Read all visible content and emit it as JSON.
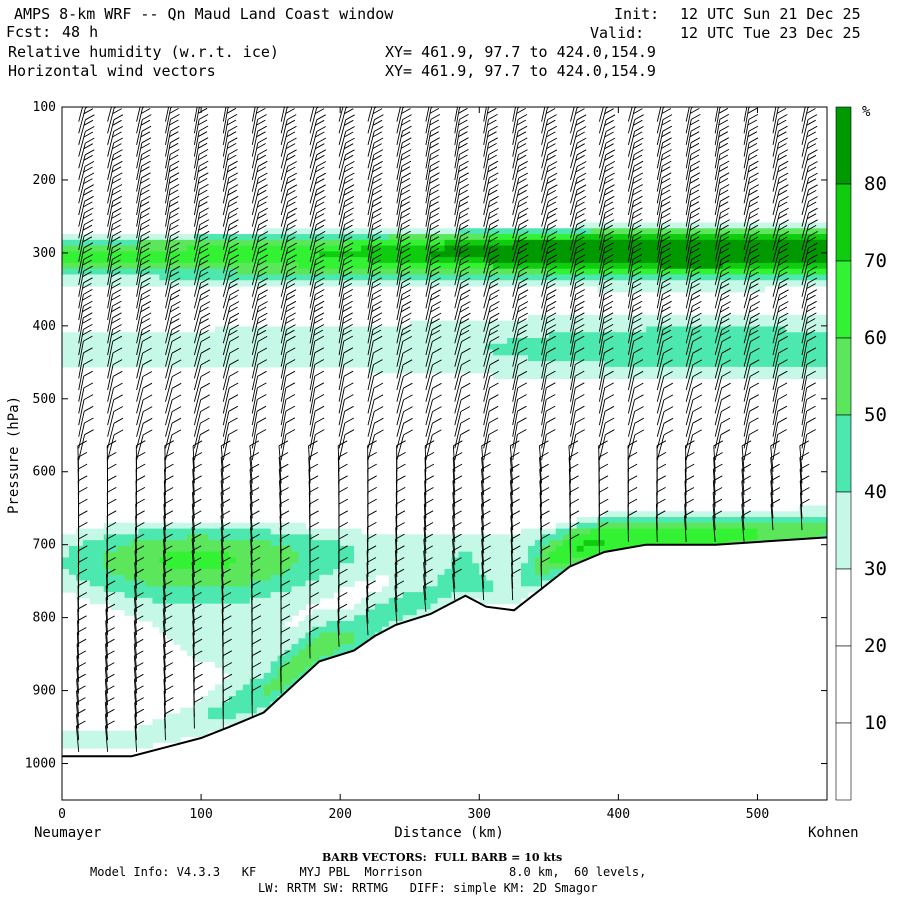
{
  "header": {
    "title": "AMPS 8-km WRF -- Qn Maud Land Coast window",
    "fcst_label": "Fcst:",
    "fcst_value": "48 h",
    "field1": "Relative humidity (w.r.t. ice)",
    "field2": "Horizontal wind vectors",
    "xy1": "XY= 461.9, 97.7 to 424.0,154.9",
    "xy2": "XY= 461.9, 97.7 to 424.0,154.9",
    "init_label": "Init:",
    "init_value": "12 UTC Sun 21 Dec 25",
    "valid_label": "Valid:",
    "valid_value": "12 UTC Tue 23 Dec 25"
  },
  "chart_data": {
    "type": "heatmap",
    "title": "Relative humidity (w.r.t. ice) and horizontal wind vectors cross-section",
    "xlabel": "Distance (km)",
    "ylabel": "Pressure (hPa)",
    "xlim": [
      0,
      550
    ],
    "ylim": [
      1050,
      100
    ],
    "x_ticks": [
      "0",
      "100",
      "200",
      "300",
      "400",
      "500"
    ],
    "x_tick_values": [
      0,
      100,
      200,
      300,
      400,
      500
    ],
    "y_ticks": [
      "100",
      "200",
      "300",
      "400",
      "500",
      "600",
      "700",
      "800",
      "900",
      "1000"
    ],
    "y_tick_values": [
      100,
      200,
      300,
      400,
      500,
      600,
      700,
      800,
      900,
      1000
    ],
    "left_endpoint": "Neumayer",
    "right_endpoint": "Kohnen",
    "colorbar": {
      "unit": "%",
      "labels": [
        "10",
        "20",
        "30",
        "40",
        "50",
        "60",
        "70",
        "80"
      ],
      "levels": [
        0,
        10,
        20,
        30,
        40,
        50,
        60,
        70,
        80,
        90
      ],
      "colors": [
        "#ffffff",
        "#ffffff",
        "#ffffff",
        "#c6f8e8",
        "#4de8b0",
        "#5ce65c",
        "#33f233",
        "#0fcc0f",
        "#009900"
      ]
    },
    "terrain_pressure": [
      {
        "x": 0,
        "p": 990
      },
      {
        "x": 50,
        "p": 990
      },
      {
        "x": 80,
        "p": 975
      },
      {
        "x": 100,
        "p": 965
      },
      {
        "x": 120,
        "p": 950
      },
      {
        "x": 145,
        "p": 930
      },
      {
        "x": 165,
        "p": 895
      },
      {
        "x": 185,
        "p": 860
      },
      {
        "x": 210,
        "p": 845
      },
      {
        "x": 225,
        "p": 825
      },
      {
        "x": 240,
        "p": 810
      },
      {
        "x": 265,
        "p": 795
      },
      {
        "x": 290,
        "p": 770
      },
      {
        "x": 305,
        "p": 785
      },
      {
        "x": 325,
        "p": 790
      },
      {
        "x": 345,
        "p": 760
      },
      {
        "x": 365,
        "p": 730
      },
      {
        "x": 390,
        "p": 710
      },
      {
        "x": 420,
        "p": 700
      },
      {
        "x": 470,
        "p": 700
      },
      {
        "x": 550,
        "p": 690
      }
    ],
    "rh_samples": [
      {
        "p": 150,
        "rh": 10
      },
      {
        "p": 260,
        "rh": 35
      },
      {
        "p": 300,
        "rh": 75
      },
      {
        "p": 400,
        "rh": 50
      },
      {
        "p": 480,
        "rh": 35
      },
      {
        "p": 580,
        "rh": 25
      },
      {
        "p": 720,
        "rh": 70
      },
      {
        "p": 850,
        "rh": 65
      }
    ],
    "barb_note": "BARB VECTORS:  FULL BARB = 10 kts"
  },
  "footer": {
    "barb_line": "BARB VECTORS:  FULL BARB = 10 kts",
    "model_line1": "Model Info: V4.3.3   KF      MYJ PBL  Morrison            8.0 km,  60 levels,",
    "model_line2": "LW: RRTM SW: RRTMG   DIFF: simple KM: 2D Smagor"
  }
}
